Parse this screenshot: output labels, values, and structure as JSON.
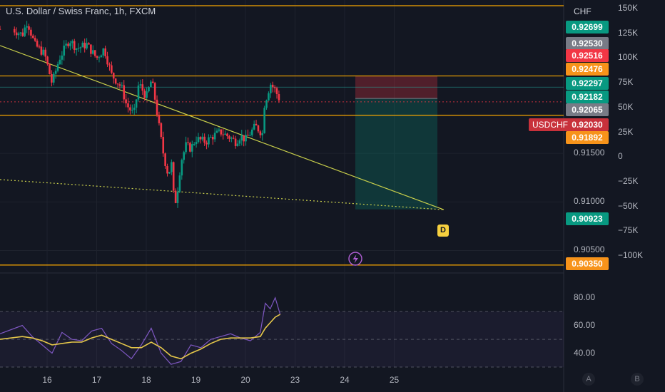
{
  "header": {
    "title": "U.S. Dollar / Swiss Franc, 1h, FXCM",
    "currency": "CHF"
  },
  "symbol_tag": "USDCHF",
  "price_tags": [
    {
      "value": "0.92699",
      "price": 0.92699,
      "color": "#089981"
    },
    {
      "value": "0.92530",
      "price": 0.9253,
      "color": "#787b86"
    },
    {
      "value": "0.92516",
      "price": 0.92516,
      "color": "#f23645"
    },
    {
      "value": "0.92476",
      "price": 0.92476,
      "color": "#f7931a"
    },
    {
      "value": "0.92297",
      "price": 0.92297,
      "color": "#089981"
    },
    {
      "value": "0.92182",
      "price": 0.92182,
      "color": "#089981"
    },
    {
      "value": "0.92065",
      "price": 0.92065,
      "color": "#787b86"
    },
    {
      "value": "0.92030",
      "price": 0.9203,
      "color": "#c8313b"
    },
    {
      "value": "0.91892",
      "price": 0.91892,
      "color": "#f7931a"
    },
    {
      "value": "0.90923",
      "price": 0.90923,
      "color": "#089981"
    },
    {
      "value": "0.90350",
      "price": 0.9035,
      "color": "#f7931a"
    }
  ],
  "marker_label": "D",
  "marker_icon": "lightning-icon",
  "buttons": {
    "a": "A",
    "b": "B"
  },
  "colors": {
    "up": "#089981",
    "down": "#f23645",
    "hline": "#f7a600",
    "trend": "#c9cf4b",
    "rsi": "#7e57c2",
    "rsi_ma": "#e6c84a",
    "bg": "#131722"
  },
  "chart_data": [
    {
      "type": "candlestick",
      "title": "U.S. Dollar / Swiss Franc, 1h, FXCM",
      "y_unit": "CHF",
      "y_ticks": [
        {
          "label": "0.91500",
          "value": 0.915
        },
        {
          "label": "0.91000",
          "value": 0.91
        },
        {
          "label": "0.90500",
          "value": 0.905
        }
      ],
      "volume_ticks": [
        {
          "label": "150K",
          "value": 150000
        },
        {
          "label": "125K",
          "value": 125000
        },
        {
          "label": "100K",
          "value": 100000
        },
        {
          "label": "75K",
          "value": 75000
        },
        {
          "label": "50K",
          "value": 50000
        },
        {
          "label": "25K",
          "value": 25000
        },
        {
          "label": "0",
          "value": 0
        },
        {
          "label": "−25K",
          "value": -25000
        },
        {
          "label": "−50K",
          "value": -50000
        },
        {
          "label": "−75K",
          "value": -75000
        },
        {
          "label": "−100K",
          "value": -100000
        }
      ],
      "x_ticks": [
        {
          "label": "16",
          "day": 16
        },
        {
          "label": "17",
          "day": 17
        },
        {
          "label": "18",
          "day": 18
        },
        {
          "label": "19",
          "day": 19
        },
        {
          "label": "20",
          "day": 20
        },
        {
          "label": "23",
          "day": 21
        },
        {
          "label": "24",
          "day": 22
        },
        {
          "label": "25",
          "day": 23
        }
      ],
      "x_range": [
        15.3,
        23.9
      ],
      "y_range": [
        0.9032,
        0.9302
      ],
      "horizontal_levels": [
        0.9302,
        0.92297,
        0.91892,
        0.9035
      ],
      "horizontal_levels_thin": [
        0.92182
      ],
      "position": {
        "start_day": 20.72,
        "end_day": 21.0,
        "entry": 0.92065,
        "stop": 0.92297,
        "target": 0.90923
      },
      "trendlines": [
        {
          "from": [
            15.3,
            0.9261
          ],
          "to": [
            22.0,
            0.9092
          ],
          "style": "solid"
        },
        {
          "from": [
            15.3,
            0.9123
          ],
          "to": [
            22.0,
            0.9092
          ],
          "style": "dotted"
        }
      ],
      "price_path": [
        [
          15.3,
          0.9278
        ],
        [
          15.5,
          0.9272
        ],
        [
          15.6,
          0.9286
        ],
        [
          15.75,
          0.9262
        ],
        [
          15.95,
          0.9252
        ],
        [
          16.1,
          0.9222
        ],
        [
          16.25,
          0.9248
        ],
        [
          16.45,
          0.9267
        ],
        [
          16.6,
          0.9258
        ],
        [
          16.8,
          0.9262
        ],
        [
          17.0,
          0.9248
        ],
        [
          17.15,
          0.9258
        ],
        [
          17.3,
          0.9231
        ],
        [
          17.5,
          0.9218
        ],
        [
          17.6,
          0.92
        ],
        [
          17.75,
          0.919
        ],
        [
          17.85,
          0.9222
        ],
        [
          18.0,
          0.9208
        ],
        [
          18.1,
          0.9225
        ],
        [
          18.15,
          0.9215
        ],
        [
          18.25,
          0.918
        ],
        [
          18.35,
          0.9148
        ],
        [
          18.45,
          0.9126
        ],
        [
          18.5,
          0.9145
        ],
        [
          18.55,
          0.9108
        ],
        [
          18.6,
          0.91
        ],
        [
          18.7,
          0.9142
        ],
        [
          18.8,
          0.9158
        ],
        [
          18.9,
          0.9155
        ],
        [
          19.0,
          0.9165
        ],
        [
          19.2,
          0.9162
        ],
        [
          19.35,
          0.9168
        ],
        [
          19.5,
          0.9172
        ],
        [
          19.7,
          0.9166
        ],
        [
          19.8,
          0.9162
        ],
        [
          19.9,
          0.9168
        ],
        [
          20.0,
          0.9164
        ],
        [
          20.2,
          0.9178
        ],
        [
          20.35,
          0.917
        ],
        [
          20.38,
          0.92
        ],
        [
          20.45,
          0.9212
        ],
        [
          20.5,
          0.9222
        ],
        [
          20.6,
          0.9215
        ],
        [
          20.7,
          0.9204
        ]
      ]
    },
    {
      "type": "line",
      "title": "RSI",
      "y_ticks": [
        {
          "label": "80.00",
          "value": 80
        },
        {
          "label": "60.00",
          "value": 60
        },
        {
          "label": "40.00",
          "value": 40
        }
      ],
      "y_range": [
        29,
        86
      ],
      "bands": [
        70,
        50,
        30
      ],
      "x_range": [
        15.3,
        23.9
      ],
      "series": [
        {
          "role": "rsi",
          "x": [
            15.3,
            15.5,
            15.7,
            15.9,
            16.1,
            16.3,
            16.5,
            16.7,
            16.9,
            17.1,
            17.3,
            17.5,
            17.7,
            17.9,
            18.1,
            18.3,
            18.5,
            18.7,
            18.9,
            19.1,
            19.3,
            19.5,
            19.7,
            19.9,
            20.1,
            20.3,
            20.4,
            20.5,
            20.6,
            20.7
          ],
          "y": [
            54,
            60,
            52,
            46,
            40,
            55,
            50,
            49,
            56,
            58,
            47,
            42,
            36,
            46,
            58,
            40,
            32,
            34,
            46,
            44,
            50,
            52,
            54,
            51,
            49,
            55,
            76,
            72,
            80,
            68
          ]
        },
        {
          "role": "rsi_ma",
          "x": [
            15.3,
            15.5,
            15.7,
            15.9,
            16.1,
            16.3,
            16.5,
            16.7,
            16.9,
            17.1,
            17.3,
            17.5,
            17.7,
            17.9,
            18.1,
            18.3,
            18.5,
            18.7,
            18.9,
            19.1,
            19.3,
            19.5,
            19.7,
            19.9,
            20.1,
            20.3,
            20.4,
            20.5,
            20.6,
            20.7
          ],
          "y": [
            50,
            52,
            51,
            49,
            46,
            47,
            48,
            48,
            51,
            53,
            50,
            47,
            44,
            44,
            48,
            44,
            38,
            36,
            40,
            43,
            47,
            50,
            51,
            51,
            51,
            52,
            58,
            62,
            66,
            68
          ]
        }
      ]
    }
  ]
}
